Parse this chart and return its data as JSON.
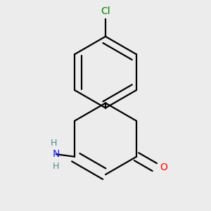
{
  "background_color": "#ececec",
  "bond_color": "#000000",
  "cl_color": "#008000",
  "o_color": "#ff0000",
  "n_color": "#1a1aff",
  "h_color": "#4a8a8a",
  "line_width": 1.6,
  "fig_size": [
    3.0,
    3.0
  ],
  "dpi": 100,
  "cl_label": "Cl",
  "o_label": "O",
  "n_label": "N",
  "h_label": "H"
}
